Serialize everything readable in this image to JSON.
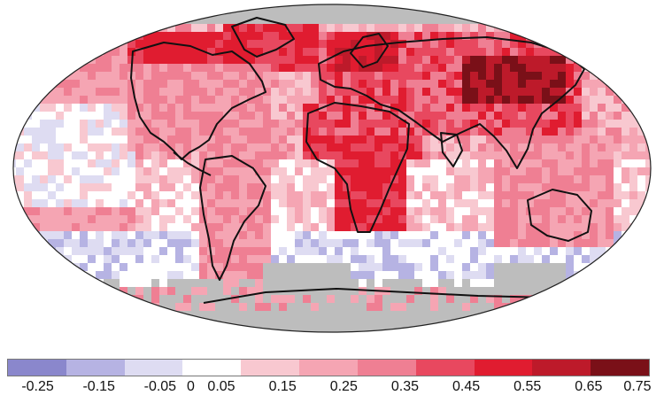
{
  "map": {
    "ocean_color": "#ffffff",
    "no_data_color": "#bdbdbd",
    "coastline_color": "#111111"
  },
  "legend": {
    "colors": [
      "#8a87cc",
      "#b6b3e3",
      "#dedcf2",
      "#ffffff",
      "#f8c8d0",
      "#f5a5b3",
      "#ef7f93",
      "#e8485f",
      "#e01c30",
      "#bd1a2a",
      "#7a1018"
    ],
    "ticks": [
      {
        "label": "-0.25",
        "value": -0.25
      },
      {
        "label": "-0.15",
        "value": -0.15
      },
      {
        "label": "-0.05",
        "value": -0.05
      },
      {
        "label": "0",
        "value": 0
      },
      {
        "label": "0.05",
        "value": 0.05
      },
      {
        "label": "0.15",
        "value": 0.15
      },
      {
        "label": "0.25",
        "value": 0.25
      },
      {
        "label": "0.35",
        "value": 0.35
      },
      {
        "label": "0.45",
        "value": 0.45
      },
      {
        "label": "0.55",
        "value": 0.55
      },
      {
        "label": "0.65",
        "value": 0.65
      },
      {
        "label": "0.75",
        "value": 0.75
      }
    ]
  }
}
